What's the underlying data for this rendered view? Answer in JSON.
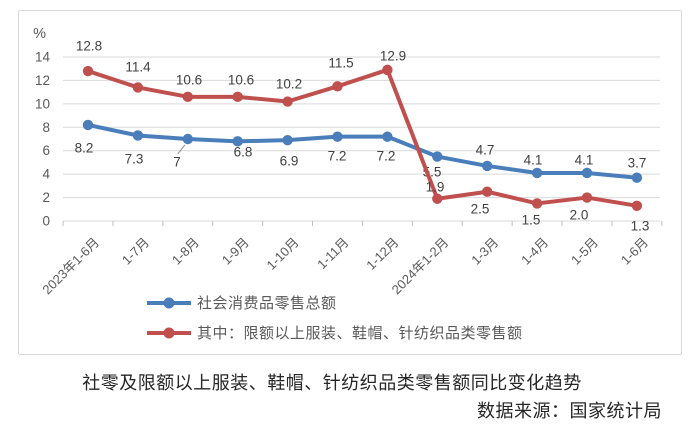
{
  "chart_data": {
    "type": "line",
    "title": "社零及限额以上服装、鞋帽、针纺织品类零售额同比变化趋势",
    "source": "数据来源：国家统计局",
    "y_unit": "%",
    "ylim": [
      0,
      14
    ],
    "y_ticks": [
      0,
      2,
      4,
      6,
      8,
      10,
      12,
      14
    ],
    "grid": true,
    "legend_position": "bottom-inside",
    "categories": [
      "2023年1-6月",
      "1-7月",
      "1-8月",
      "1-9月",
      "1-10月",
      "1-11月",
      "1-12月",
      "2024年1-2月",
      "1-3月",
      "1-4月",
      "1-5月",
      "1-6月"
    ],
    "series": [
      {
        "name": "社会消费品零售总额",
        "color": "#4A7EBB",
        "values": [
          8.2,
          7.3,
          7,
          6.8,
          6.9,
          7.2,
          7.2,
          5.5,
          4.7,
          4.1,
          4.1,
          3.7
        ],
        "labels": [
          "8.2",
          "7.3",
          "7",
          "6.8",
          "6.9",
          "7.2",
          "7.2",
          "5.5",
          "4.7",
          "4.1",
          "4.1",
          "3.7"
        ]
      },
      {
        "name": "其中：限额以上服装、鞋帽、针纺织品类零售额",
        "color": "#C0504D",
        "values": [
          12.8,
          11.4,
          10.6,
          10.6,
          10.2,
          11.5,
          12.9,
          1.9,
          2.5,
          1.5,
          2.0,
          1.3
        ],
        "labels": [
          "12.8",
          "11.4",
          "10.6",
          "10.6",
          "10.2",
          "11.5",
          "12.9",
          "1.9",
          "2.5",
          "1.5",
          "2.0",
          "1.3"
        ]
      }
    ],
    "style_colors": {
      "grid": "#d9d9d9",
      "axis_tick": "#bfbfbf",
      "tick_text": "#595959",
      "data_label": "#404040",
      "leader_line": "#9d9d9d"
    }
  }
}
